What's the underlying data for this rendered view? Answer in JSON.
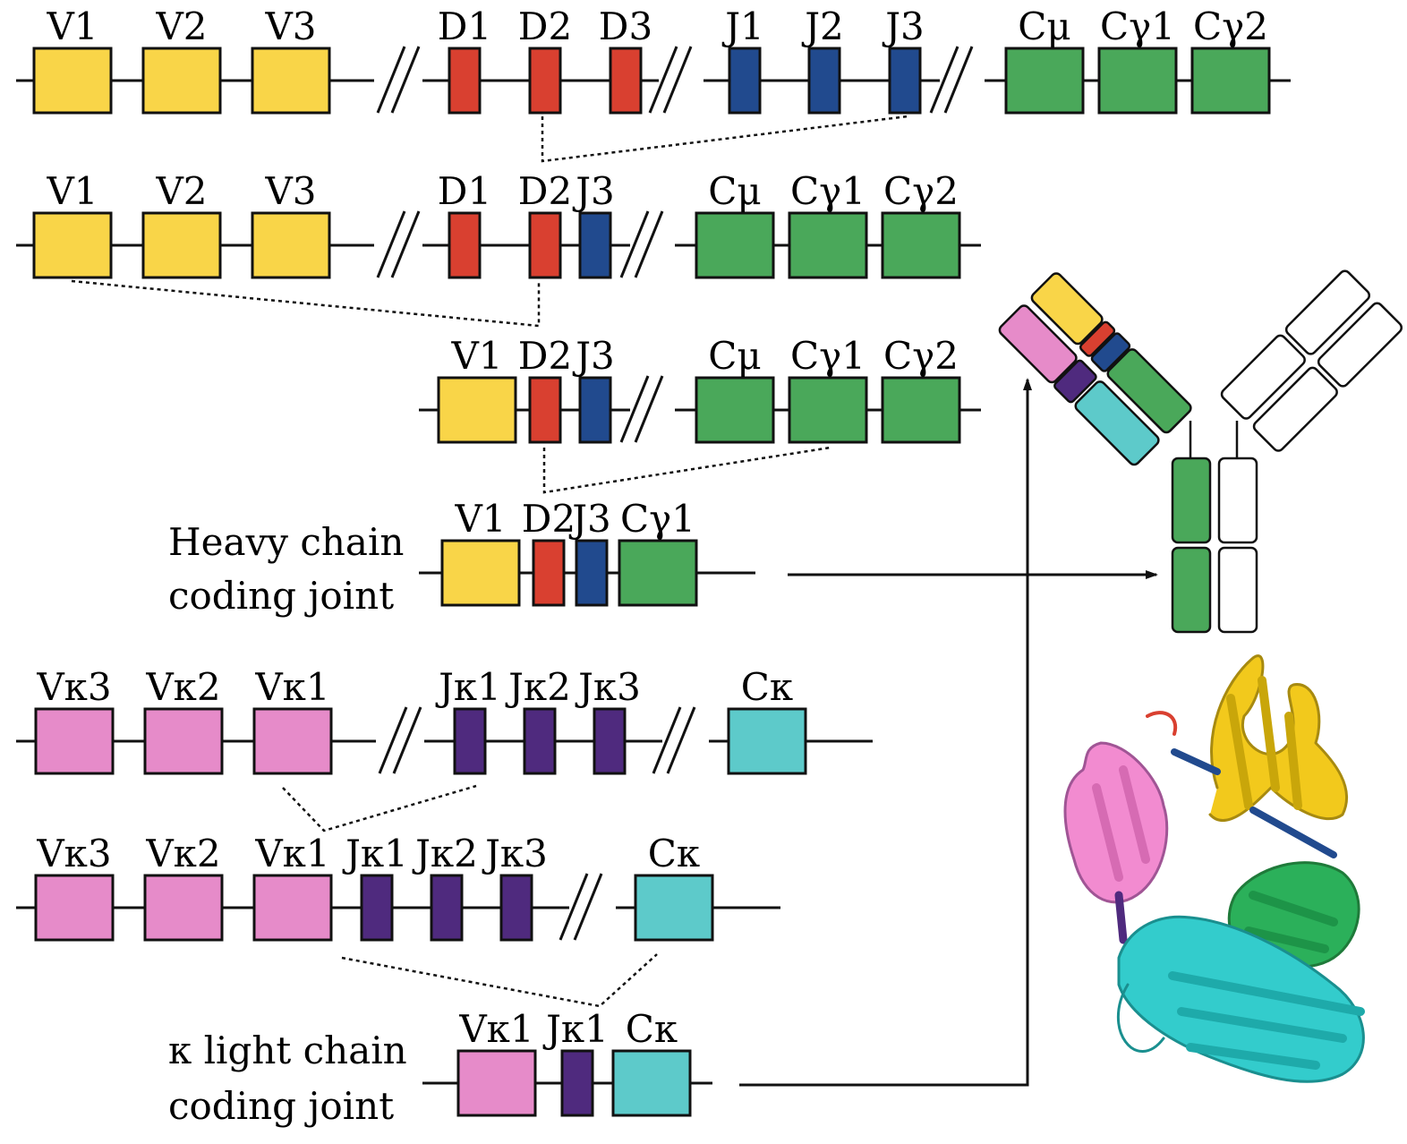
{
  "colors": {
    "V": "#f9d548",
    "D": "#d94030",
    "J": "#214a8e",
    "C": "#4aa85a",
    "Vk": "#e68bc9",
    "Jk": "#4f2a7e",
    "Ck": "#5dcaca",
    "outline": "#111111"
  },
  "heavy_rows": [
    {
      "segments": [
        "V1",
        "V2",
        "V3",
        "D1",
        "D2",
        "D3",
        "J1",
        "J2",
        "J3",
        "Cμ",
        "Cγ1",
        "Cγ2"
      ]
    },
    {
      "segments": [
        "V1",
        "V2",
        "V3",
        "D1",
        "D2",
        "J3",
        "Cμ",
        "Cγ1",
        "Cγ2"
      ]
    },
    {
      "segments": [
        "V1",
        "D2",
        "J3",
        "Cμ",
        "Cγ1",
        "Cγ2"
      ]
    },
    {
      "segments": [
        "V1",
        "D2",
        "J3",
        "Cγ1"
      ]
    }
  ],
  "light_rows": [
    {
      "segments": [
        "Vκ3",
        "Vκ2",
        "Vκ1",
        "Jκ1",
        "Jκ2",
        "Jκ3",
        "Cκ"
      ]
    },
    {
      "segments": [
        "Vκ3",
        "Vκ2",
        "Vκ1",
        "Jκ1",
        "Jκ2",
        "Jκ3",
        "Cκ"
      ]
    },
    {
      "segments": [
        "Vκ1",
        "Jκ1",
        "Cκ"
      ]
    }
  ],
  "captions": {
    "heavy": [
      "Heavy chain",
      "coding joint"
    ],
    "light": [
      "κ light chain",
      "coding joint"
    ]
  },
  "icons": {
    "antibody": "antibody-y-shape-icon",
    "structure": "fab-ribbon-structure-icon"
  }
}
